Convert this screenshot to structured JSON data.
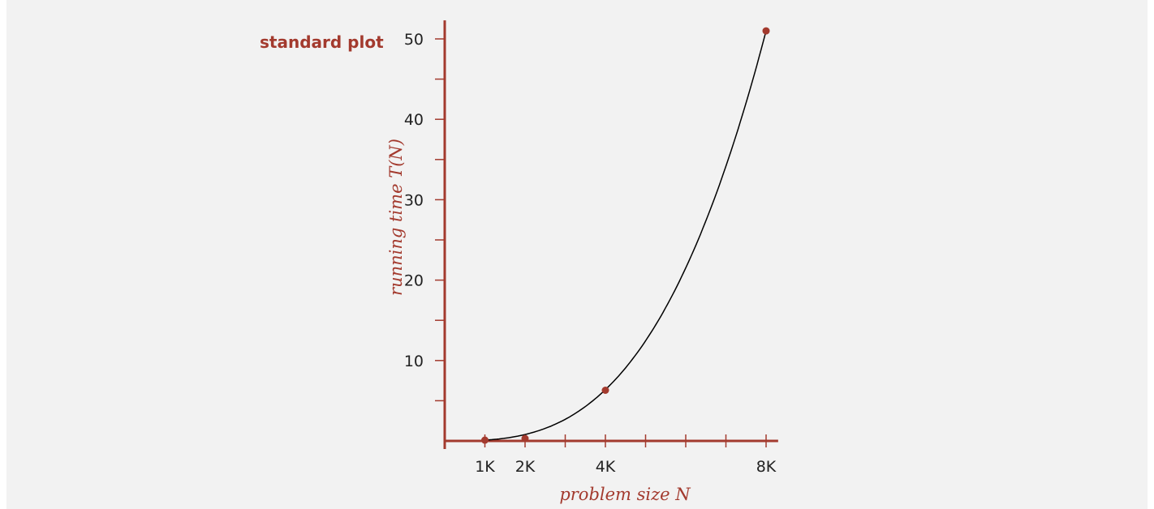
{
  "chart_data": {
    "type": "line",
    "title": "standard plot",
    "xlabel": "problem size N",
    "ylabel": "running time T(N)",
    "x_ticks": [
      1000,
      2000,
      3000,
      4000,
      5000,
      6000,
      7000,
      8000
    ],
    "x_tick_labels": [
      "1K",
      "2K",
      "",
      "4K",
      "",
      "",
      "",
      "8K"
    ],
    "y_ticks": [
      5,
      10,
      15,
      20,
      25,
      30,
      35,
      40,
      45,
      50
    ],
    "y_tick_labels": [
      "",
      "10",
      "",
      "20",
      "",
      "30",
      "",
      "40",
      "",
      "50"
    ],
    "xlim": [
      0,
      8300
    ],
    "ylim": [
      0,
      51.5
    ],
    "grid": false,
    "series": [
      {
        "x": [
          1000,
          2000,
          4000,
          8000
        ],
        "y": [
          0.1,
          0.3,
          6.3,
          51.0
        ]
      }
    ],
    "colors": {
      "axis": "#a33a2e",
      "curve": "#000000",
      "point": "#a33a2e",
      "background": "#f2f2f2"
    }
  }
}
